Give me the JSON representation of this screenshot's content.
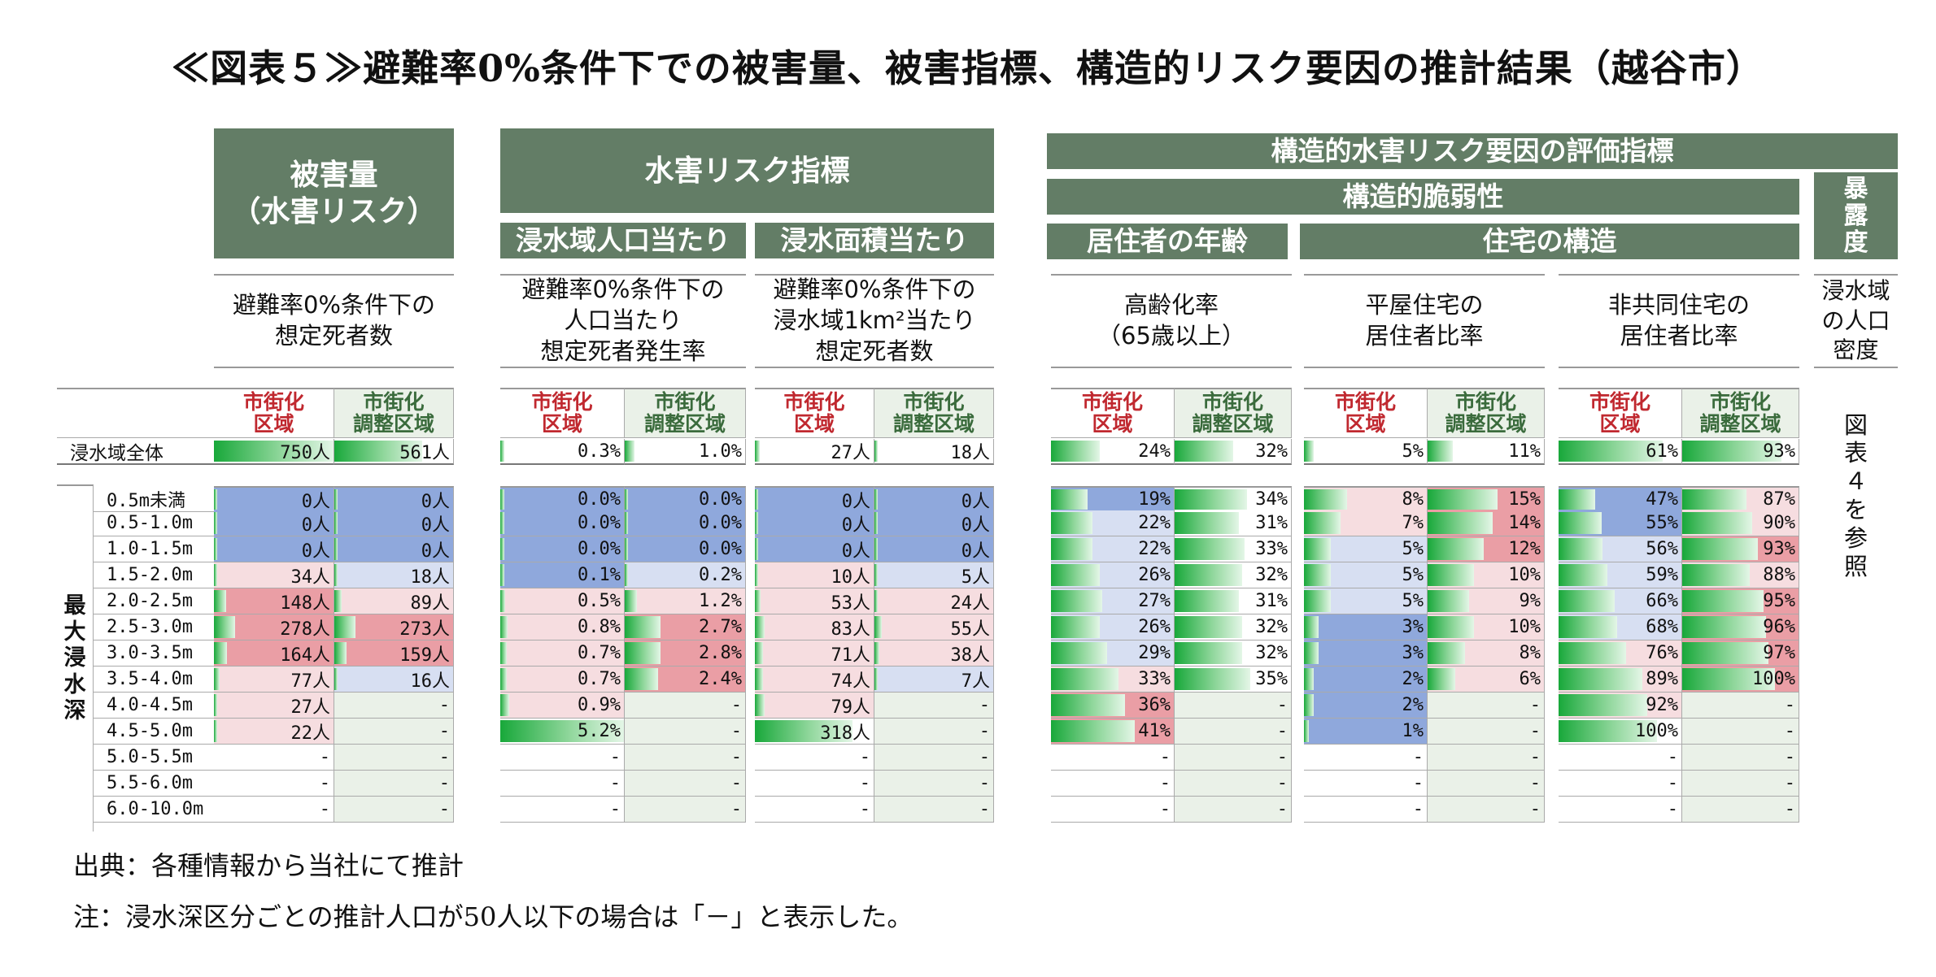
{
  "title": "≪図表５≫避難率0%条件下での被害量、被害指標、構造的リスク要因の推計結果（越谷市）",
  "headers": {
    "damage_title": "被害量",
    "damage_subtitle": "（水害リスク）",
    "risk_index": "水害リスク指標",
    "per_pop": "浸水域人口当たり",
    "per_area": "浸水面積当たり",
    "structural": "構造的水害リスク要因の評価指標",
    "vulnerability": "構造的脆弱性",
    "resident_age": "居住者の年齢",
    "housing": "住宅の構造",
    "exposure": "暴露度"
  },
  "descriptions": {
    "deaths": "避難率0%条件下の\n想定死者数",
    "deaths_per_pop": "避難率0%条件下の\n人口当たり\n想定死者発生率",
    "deaths_per_area": "避難率0%条件下の\n浸水域1km²当たり\n想定死者数",
    "elderly": "高齢化率\n（65歳以上）",
    "one_storey": "平屋住宅の\n居住者比率",
    "non_shared": "非共同住宅の\n居住者比率",
    "density": "浸水域\nの人口\n密度"
  },
  "col_labels": {
    "urban": "市街化\n区域",
    "adjust": "市街化\n調整区域"
  },
  "exposure_note": "図\n表\n４\nを\n参\n照",
  "row_group_label": "最\n大\n浸\n水\n深",
  "total_label": "浸水域全体",
  "row_labels": [
    "0.5m未満",
    "0.5-1.0m",
    "1.0-1.5m",
    "1.5-2.0m",
    "2.0-2.5m",
    "2.5-3.0m",
    "3.0-3.5m",
    "3.5-4.0m",
    "4.0-4.5m",
    "4.5-5.0m",
    "5.0-5.5m",
    "5.5-6.0m",
    "6.0-10.0m"
  ],
  "colors": {
    "header_green": "#637d66",
    "blue": "#8fa8dc",
    "light_blue": "#d7dff2",
    "red": "#ea9ea5",
    "pink": "#f6dde0",
    "light_green": "#eaf1e8"
  },
  "columns": [
    {
      "name": "deaths_urban",
      "total": {
        "text": "750人",
        "fill": 1.0
      },
      "rows": [
        {
          "text": "0人",
          "bg": "blue",
          "fill": 0
        },
        {
          "text": "0人",
          "bg": "blue",
          "fill": 0
        },
        {
          "text": "0人",
          "bg": "blue",
          "fill": 0
        },
        {
          "text": "34人",
          "bg": "pink",
          "fill": 0.03
        },
        {
          "text": "148人",
          "bg": "red",
          "fill": 0.1
        },
        {
          "text": "278人",
          "bg": "red",
          "fill": 0.18
        },
        {
          "text": "164人",
          "bg": "red",
          "fill": 0.11
        },
        {
          "text": "77人",
          "bg": "pink",
          "fill": 0.05
        },
        {
          "text": "27人",
          "bg": "pink",
          "fill": 0.02
        },
        {
          "text": "22人",
          "bg": "pink",
          "fill": 0.02
        },
        {
          "text": "-",
          "bg": "none",
          "fill": 0
        },
        {
          "text": "-",
          "bg": "none",
          "fill": 0
        },
        {
          "text": "-",
          "bg": "none",
          "fill": 0
        }
      ]
    },
    {
      "name": "deaths_adjust",
      "total": {
        "text": "561人",
        "fill": 0.74
      },
      "rows": [
        {
          "text": "0人",
          "bg": "blue",
          "fill": 0
        },
        {
          "text": "0人",
          "bg": "blue",
          "fill": 0
        },
        {
          "text": "0人",
          "bg": "blue",
          "fill": 0
        },
        {
          "text": "18人",
          "bg": "light_blue",
          "fill": 0.02
        },
        {
          "text": "89人",
          "bg": "pink",
          "fill": 0.06
        },
        {
          "text": "273人",
          "bg": "red",
          "fill": 0.18
        },
        {
          "text": "159人",
          "bg": "red",
          "fill": 0.1
        },
        {
          "text": "16人",
          "bg": "light_blue",
          "fill": 0.02
        },
        {
          "text": "-",
          "bg": "light_green",
          "fill": 0
        },
        {
          "text": "-",
          "bg": "light_green",
          "fill": 0
        },
        {
          "text": "-",
          "bg": "light_green",
          "fill": 0
        },
        {
          "text": "-",
          "bg": "light_green",
          "fill": 0
        },
        {
          "text": "-",
          "bg": "light_green",
          "fill": 0
        }
      ]
    },
    {
      "name": "rate_urban",
      "total": {
        "text": "0.3%",
        "fill": 0.02
      },
      "rows": [
        {
          "text": "0.0%",
          "bg": "blue",
          "fill": 0
        },
        {
          "text": "0.0%",
          "bg": "blue",
          "fill": 0
        },
        {
          "text": "0.0%",
          "bg": "blue",
          "fill": 0
        },
        {
          "text": "0.1%",
          "bg": "blue",
          "fill": 0.02
        },
        {
          "text": "0.5%",
          "bg": "pink",
          "fill": 0.04
        },
        {
          "text": "0.8%",
          "bg": "pink",
          "fill": 0.06
        },
        {
          "text": "0.7%",
          "bg": "pink",
          "fill": 0.05
        },
        {
          "text": "0.7%",
          "bg": "pink",
          "fill": 0.05
        },
        {
          "text": "0.9%",
          "bg": "pink",
          "fill": 0.07
        },
        {
          "text": "5.2%",
          "bg": "none",
          "fill": 1.0
        },
        {
          "text": "-",
          "bg": "none",
          "fill": 0
        },
        {
          "text": "-",
          "bg": "none",
          "fill": 0
        },
        {
          "text": "-",
          "bg": "none",
          "fill": 0
        }
      ]
    },
    {
      "name": "rate_adjust",
      "total": {
        "text": "1.0%",
        "fill": 0.08
      },
      "rows": [
        {
          "text": "0.0%",
          "bg": "blue",
          "fill": 0
        },
        {
          "text": "0.0%",
          "bg": "blue",
          "fill": 0
        },
        {
          "text": "0.0%",
          "bg": "blue",
          "fill": 0
        },
        {
          "text": "0.2%",
          "bg": "light_blue",
          "fill": 0.02
        },
        {
          "text": "1.2%",
          "bg": "pink",
          "fill": 0.1
        },
        {
          "text": "2.7%",
          "bg": "red",
          "fill": 0.3
        },
        {
          "text": "2.8%",
          "bg": "red",
          "fill": 0.3
        },
        {
          "text": "2.4%",
          "bg": "red",
          "fill": 0.28
        },
        {
          "text": "-",
          "bg": "light_green",
          "fill": 0
        },
        {
          "text": "-",
          "bg": "light_green",
          "fill": 0
        },
        {
          "text": "-",
          "bg": "light_green",
          "fill": 0
        },
        {
          "text": "-",
          "bg": "light_green",
          "fill": 0
        },
        {
          "text": "-",
          "bg": "light_green",
          "fill": 0
        }
      ]
    },
    {
      "name": "area_urban",
      "total": {
        "text": "27人",
        "fill": 0.04
      },
      "rows": [
        {
          "text": "0人",
          "bg": "blue",
          "fill": 0
        },
        {
          "text": "0人",
          "bg": "blue",
          "fill": 0
        },
        {
          "text": "0人",
          "bg": "blue",
          "fill": 0
        },
        {
          "text": "10人",
          "bg": "pink",
          "fill": 0.01
        },
        {
          "text": "53人",
          "bg": "pink",
          "fill": 0.05
        },
        {
          "text": "83人",
          "bg": "pink",
          "fill": 0.08
        },
        {
          "text": "71人",
          "bg": "pink",
          "fill": 0.07
        },
        {
          "text": "74人",
          "bg": "pink",
          "fill": 0.07
        },
        {
          "text": "79人",
          "bg": "pink",
          "fill": 0.08
        },
        {
          "text": "318人",
          "bg": "none",
          "fill": 0.82
        },
        {
          "text": "-",
          "bg": "none",
          "fill": 0
        },
        {
          "text": "-",
          "bg": "none",
          "fill": 0
        },
        {
          "text": "-",
          "bg": "none",
          "fill": 0
        }
      ]
    },
    {
      "name": "area_adjust",
      "total": {
        "text": "18人",
        "fill": 0.03
      },
      "rows": [
        {
          "text": "0人",
          "bg": "blue",
          "fill": 0
        },
        {
          "text": "0人",
          "bg": "blue",
          "fill": 0
        },
        {
          "text": "0人",
          "bg": "blue",
          "fill": 0
        },
        {
          "text": "5人",
          "bg": "light_blue",
          "fill": 0.01
        },
        {
          "text": "24人",
          "bg": "pink",
          "fill": 0.03
        },
        {
          "text": "55人",
          "bg": "pink",
          "fill": 0.06
        },
        {
          "text": "38人",
          "bg": "pink",
          "fill": 0.04
        },
        {
          "text": "7人",
          "bg": "light_blue",
          "fill": 0.01
        },
        {
          "text": "-",
          "bg": "light_green",
          "fill": 0
        },
        {
          "text": "-",
          "bg": "light_green",
          "fill": 0
        },
        {
          "text": "-",
          "bg": "light_green",
          "fill": 0
        },
        {
          "text": "-",
          "bg": "light_green",
          "fill": 0
        },
        {
          "text": "-",
          "bg": "light_green",
          "fill": 0
        }
      ]
    },
    {
      "name": "elderly_urban",
      "total": {
        "text": "24%",
        "fill": 0.4
      },
      "rows": [
        {
          "text": "19%",
          "bg": "blue",
          "fill": 0.3
        },
        {
          "text": "22%",
          "bg": "light_blue",
          "fill": 0.34
        },
        {
          "text": "22%",
          "bg": "light_blue",
          "fill": 0.34
        },
        {
          "text": "26%",
          "bg": "light_blue",
          "fill": 0.4
        },
        {
          "text": "27%",
          "bg": "light_blue",
          "fill": 0.42
        },
        {
          "text": "26%",
          "bg": "light_blue",
          "fill": 0.4
        },
        {
          "text": "29%",
          "bg": "light_blue",
          "fill": 0.46
        },
        {
          "text": "33%",
          "bg": "pink",
          "fill": 0.55
        },
        {
          "text": "36%",
          "bg": "red",
          "fill": 0.6
        },
        {
          "text": "41%",
          "bg": "red",
          "fill": 0.68
        },
        {
          "text": "-",
          "bg": "none",
          "fill": 0
        },
        {
          "text": "-",
          "bg": "none",
          "fill": 0
        },
        {
          "text": "-",
          "bg": "none",
          "fill": 0
        }
      ]
    },
    {
      "name": "elderly_adjust",
      "total": {
        "text": "32%",
        "fill": 0.5
      },
      "rows": [
        {
          "text": "34%",
          "bg": "none",
          "fill": 0.62
        },
        {
          "text": "31%",
          "bg": "none",
          "fill": 0.55
        },
        {
          "text": "33%",
          "bg": "none",
          "fill": 0.6
        },
        {
          "text": "32%",
          "bg": "none",
          "fill": 0.58
        },
        {
          "text": "31%",
          "bg": "none",
          "fill": 0.55
        },
        {
          "text": "32%",
          "bg": "none",
          "fill": 0.58
        },
        {
          "text": "32%",
          "bg": "none",
          "fill": 0.58
        },
        {
          "text": "35%",
          "bg": "none",
          "fill": 0.65
        },
        {
          "text": "-",
          "bg": "light_green",
          "fill": 0
        },
        {
          "text": "-",
          "bg": "light_green",
          "fill": 0
        },
        {
          "text": "-",
          "bg": "light_green",
          "fill": 0
        },
        {
          "text": "-",
          "bg": "light_green",
          "fill": 0
        },
        {
          "text": "-",
          "bg": "light_green",
          "fill": 0
        }
      ]
    },
    {
      "name": "onestorey_urban",
      "total": {
        "text": "5%",
        "fill": 0.08
      },
      "rows": [
        {
          "text": "8%",
          "bg": "pink",
          "fill": 0.35
        },
        {
          "text": "7%",
          "bg": "pink",
          "fill": 0.3
        },
        {
          "text": "5%",
          "bg": "light_blue",
          "fill": 0.22
        },
        {
          "text": "5%",
          "bg": "light_blue",
          "fill": 0.22
        },
        {
          "text": "5%",
          "bg": "light_blue",
          "fill": 0.22
        },
        {
          "text": "3%",
          "bg": "blue",
          "fill": 0.12
        },
        {
          "text": "3%",
          "bg": "blue",
          "fill": 0.12
        },
        {
          "text": "2%",
          "bg": "blue",
          "fill": 0.08
        },
        {
          "text": "2%",
          "bg": "blue",
          "fill": 0.08
        },
        {
          "text": "1%",
          "bg": "blue",
          "fill": 0.04
        },
        {
          "text": "-",
          "bg": "none",
          "fill": 0
        },
        {
          "text": "-",
          "bg": "none",
          "fill": 0
        },
        {
          "text": "-",
          "bg": "none",
          "fill": 0
        }
      ]
    },
    {
      "name": "onestorey_adjust",
      "total": {
        "text": "11%",
        "fill": 0.22
      },
      "rows": [
        {
          "text": "15%",
          "bg": "red",
          "fill": 0.6
        },
        {
          "text": "14%",
          "bg": "red",
          "fill": 0.56
        },
        {
          "text": "12%",
          "bg": "red",
          "fill": 0.48
        },
        {
          "text": "10%",
          "bg": "pink",
          "fill": 0.4
        },
        {
          "text": "9%",
          "bg": "pink",
          "fill": 0.36
        },
        {
          "text": "10%",
          "bg": "pink",
          "fill": 0.4
        },
        {
          "text": "8%",
          "bg": "pink",
          "fill": 0.32
        },
        {
          "text": "6%",
          "bg": "pink",
          "fill": 0.24
        },
        {
          "text": "-",
          "bg": "light_green",
          "fill": 0
        },
        {
          "text": "-",
          "bg": "light_green",
          "fill": 0
        },
        {
          "text": "-",
          "bg": "light_green",
          "fill": 0
        },
        {
          "text": "-",
          "bg": "light_green",
          "fill": 0
        },
        {
          "text": "-",
          "bg": "light_green",
          "fill": 0
        }
      ]
    },
    {
      "name": "nonshared_urban",
      "total": {
        "text": "61%",
        "fill": 0.85
      },
      "rows": [
        {
          "text": "47%",
          "bg": "blue",
          "fill": 0.3
        },
        {
          "text": "55%",
          "bg": "blue",
          "fill": 0.35
        },
        {
          "text": "56%",
          "bg": "light_blue",
          "fill": 0.36
        },
        {
          "text": "59%",
          "bg": "light_blue",
          "fill": 0.4
        },
        {
          "text": "66%",
          "bg": "light_blue",
          "fill": 0.46
        },
        {
          "text": "68%",
          "bg": "light_blue",
          "fill": 0.48
        },
        {
          "text": "76%",
          "bg": "pink",
          "fill": 0.55
        },
        {
          "text": "89%",
          "bg": "pink",
          "fill": 0.68
        },
        {
          "text": "92%",
          "bg": "pink",
          "fill": 0.72
        },
        {
          "text": "100%",
          "bg": "none",
          "fill": 0.8
        },
        {
          "text": "-",
          "bg": "none",
          "fill": 0
        },
        {
          "text": "-",
          "bg": "none",
          "fill": 0
        },
        {
          "text": "-",
          "bg": "none",
          "fill": 0
        }
      ]
    },
    {
      "name": "nonshared_adjust",
      "total": {
        "text": "93%",
        "fill": 0.85
      },
      "rows": [
        {
          "text": "87%",
          "bg": "pink",
          "fill": 0.55
        },
        {
          "text": "90%",
          "bg": "pink",
          "fill": 0.6
        },
        {
          "text": "93%",
          "bg": "red",
          "fill": 0.65
        },
        {
          "text": "88%",
          "bg": "pink",
          "fill": 0.58
        },
        {
          "text": "95%",
          "bg": "red",
          "fill": 0.7
        },
        {
          "text": "96%",
          "bg": "red",
          "fill": 0.72
        },
        {
          "text": "97%",
          "bg": "red",
          "fill": 0.74
        },
        {
          "text": "100%",
          "bg": "red",
          "fill": 0.8
        },
        {
          "text": "-",
          "bg": "light_green",
          "fill": 0
        },
        {
          "text": "-",
          "bg": "light_green",
          "fill": 0
        },
        {
          "text": "-",
          "bg": "light_green",
          "fill": 0
        },
        {
          "text": "-",
          "bg": "light_green",
          "fill": 0
        },
        {
          "text": "-",
          "bg": "light_green",
          "fill": 0
        }
      ]
    }
  ],
  "notes": {
    "source": "出典：各種情報から当社にて推計",
    "caveat": "注：浸水深区分ごとの推計人口が50人以下の場合は「－」と表示した。"
  }
}
